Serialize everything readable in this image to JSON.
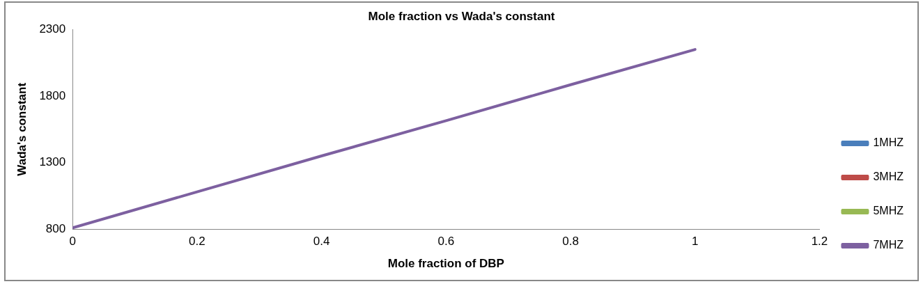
{
  "chart_data": {
    "type": "line",
    "title": "Mole fraction vs Wada's constant",
    "xlabel": "Mole fraction of DBP",
    "ylabel": "Wada's constant",
    "x": [
      0,
      0.2,
      0.4,
      0.6,
      0.8,
      1
    ],
    "series": [
      {
        "name": "1MHZ",
        "color": "#4a7ebb",
        "values": [
          null,
          null,
          null,
          null,
          null,
          null
        ]
      },
      {
        "name": "3MHZ",
        "color": "#be4b48",
        "values": [
          null,
          null,
          null,
          null,
          null,
          null
        ]
      },
      {
        "name": "5MHZ",
        "color": "#98b954",
        "values": [
          null,
          null,
          null,
          null,
          null,
          null
        ]
      },
      {
        "name": "7MHZ",
        "color": "#7d60a0",
        "values": [
          810,
          1080,
          1350,
          1615,
          1885,
          2150
        ]
      }
    ],
    "xlim": [
      0,
      1.2
    ],
    "xticks": [
      0,
      0.2,
      0.4,
      0.6,
      0.8,
      1,
      1.2
    ],
    "ylim": [
      800,
      2300
    ],
    "yticks": [
      800,
      1300,
      1800,
      2300
    ],
    "grid": false,
    "legend": "right",
    "marker": "none",
    "line_style": "solid"
  }
}
